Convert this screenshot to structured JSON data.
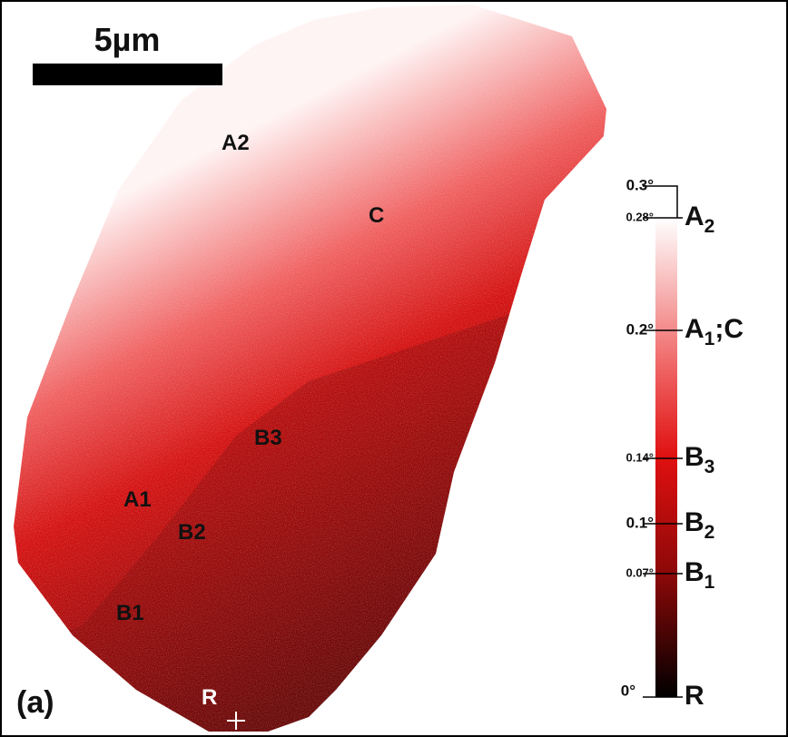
{
  "scale_bar": {
    "label": "5µm"
  },
  "panel_label": "(a)",
  "points": [
    "A2",
    "C",
    "B3",
    "A1",
    "B2",
    "B1",
    "R"
  ],
  "colorbar": {
    "ticks": [
      "0.3°",
      "0.28°",
      "0.2°",
      "0.14°",
      "0.1°",
      "0.07°",
      "0°"
    ],
    "labels": [
      {
        "letter": "A",
        "sub": "2"
      },
      {
        "letter": "A",
        "sub": "1",
        "after": ";C"
      },
      {
        "letter": "B",
        "sub": "3"
      },
      {
        "letter": "B",
        "sub": "2"
      },
      {
        "letter": "B",
        "sub": "1"
      },
      {
        "letter": "R"
      }
    ]
  }
}
